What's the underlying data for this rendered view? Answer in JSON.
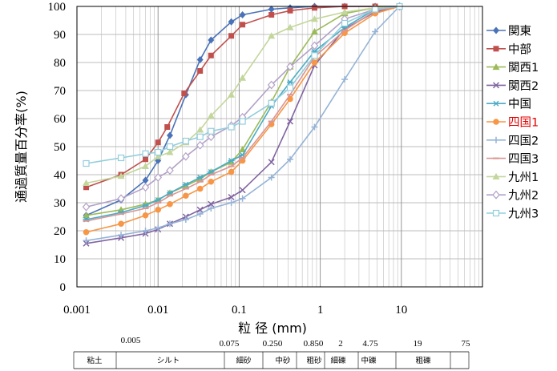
{
  "chart_data": {
    "type": "line",
    "title": "",
    "xlabel": "粒 径 (mm)",
    "ylabel": "通過質量百分率(%)",
    "xscale": "log",
    "xlim": [
      0.001,
      100
    ],
    "ylim": [
      0,
      100
    ],
    "grid": true,
    "legend": "right",
    "x_tick_labels": [
      "0.001",
      "0.01",
      "0.1",
      "1",
      "10"
    ],
    "y_tick_labels": [
      "0",
      "10",
      "20",
      "30",
      "40",
      "50",
      "60",
      "70",
      "80",
      "90",
      "100"
    ],
    "series": [
      {
        "name": "関東",
        "color": "#4a72b8",
        "marker": "diamond",
        "x": [
          0.0013,
          0.0035,
          0.007,
          0.01,
          0.014,
          0.022,
          0.033,
          0.045,
          0.08,
          0.11,
          0.25,
          0.425,
          0.85,
          2,
          4.75,
          9.5
        ],
        "y": [
          25.5,
          31,
          38,
          45,
          54,
          68.5,
          81,
          88,
          94.5,
          97,
          99,
          99.5,
          100,
          100,
          100,
          100
        ]
      },
      {
        "name": "中部",
        "color": "#c0504d",
        "marker": "square",
        "x": [
          0.0013,
          0.0035,
          0.007,
          0.01,
          0.013,
          0.021,
          0.033,
          0.045,
          0.08,
          0.11,
          0.25,
          0.425,
          0.85,
          2,
          4.75,
          9.5
        ],
        "y": [
          35.5,
          40,
          45.5,
          51.5,
          57,
          69,
          77,
          82.5,
          89.5,
          93.5,
          97,
          98.5,
          99.5,
          100,
          100,
          100
        ]
      },
      {
        "name": "関西1",
        "color": "#9bbb59",
        "marker": "triangle",
        "x": [
          0.0013,
          0.0035,
          0.007,
          0.01,
          0.014,
          0.022,
          0.033,
          0.045,
          0.08,
          0.11,
          0.25,
          0.425,
          0.85,
          2,
          4.75,
          9.5
        ],
        "y": [
          25.5,
          27.5,
          29.5,
          31,
          33.5,
          36,
          38.5,
          41,
          44.5,
          49,
          66,
          78.5,
          91,
          97.5,
          99.5,
          100
        ]
      },
      {
        "name": "関西2",
        "color": "#8064a2",
        "marker": "x",
        "x": [
          0.0013,
          0.0035,
          0.007,
          0.01,
          0.014,
          0.022,
          0.033,
          0.045,
          0.08,
          0.11,
          0.25,
          0.425,
          0.85,
          2,
          4.75,
          9.5
        ],
        "y": [
          15.5,
          17.5,
          19,
          20.5,
          22.5,
          25,
          27.5,
          29.5,
          32,
          34.5,
          44.5,
          59,
          79,
          92,
          98,
          100
        ]
      },
      {
        "name": "中国",
        "color": "#4bacc6",
        "marker": "star",
        "x": [
          0.0013,
          0.0035,
          0.007,
          0.01,
          0.014,
          0.022,
          0.033,
          0.045,
          0.08,
          0.11,
          0.25,
          0.425,
          0.85,
          2,
          4.75,
          9.5
        ],
        "y": [
          24,
          26.5,
          29,
          31,
          33.5,
          36.5,
          39,
          41,
          45,
          47,
          64.5,
          73,
          84,
          92.5,
          99,
          100
        ]
      },
      {
        "name": "四国1",
        "color": "#f79646",
        "marker": "circle",
        "x": [
          0.0013,
          0.0035,
          0.007,
          0.01,
          0.014,
          0.022,
          0.033,
          0.045,
          0.08,
          0.11,
          0.25,
          0.425,
          0.85,
          2,
          4.75,
          9.5
        ],
        "y": [
          19.5,
          22.5,
          25.5,
          27.5,
          29.5,
          32.5,
          35,
          37.5,
          41,
          45,
          58,
          67,
          80,
          90.5,
          97.5,
          100
        ]
      },
      {
        "name": "四国2",
        "color": "#95b3d7",
        "marker": "plus",
        "x": [
          0.0013,
          0.0035,
          0.007,
          0.01,
          0.014,
          0.022,
          0.033,
          0.045,
          0.08,
          0.11,
          0.25,
          0.425,
          0.85,
          2,
          4.75,
          9.5
        ],
        "y": [
          16.5,
          18.5,
          20,
          21,
          22.5,
          24,
          26,
          28,
          30,
          31.5,
          39,
          45.5,
          57,
          74,
          91,
          100
        ]
      },
      {
        "name": "四国3",
        "color": "#d99694",
        "marker": "dash",
        "x": [
          0.0013,
          0.0035,
          0.007,
          0.01,
          0.014,
          0.022,
          0.033,
          0.045,
          0.08,
          0.11,
          0.25,
          0.425,
          0.85,
          2,
          4.75,
          9.5
        ],
        "y": [
          23.5,
          26,
          28,
          30,
          32.5,
          35,
          37.5,
          40,
          43,
          46,
          59,
          68.5,
          82,
          91.5,
          98.5,
          100
        ]
      },
      {
        "name": "九州1",
        "color": "#c3d69b",
        "marker": "triangle",
        "x": [
          0.0013,
          0.0035,
          0.007,
          0.01,
          0.014,
          0.022,
          0.033,
          0.045,
          0.08,
          0.11,
          0.25,
          0.425,
          0.85,
          2,
          4.75,
          9.5
        ],
        "y": [
          37,
          39.5,
          43,
          46.5,
          48,
          51.5,
          56,
          61,
          68.5,
          74.5,
          89.5,
          92.5,
          95.5,
          98,
          99.5,
          100
        ]
      },
      {
        "name": "九州2",
        "color": "#b2a1c7",
        "marker": "diamond-open",
        "x": [
          0.0013,
          0.0035,
          0.007,
          0.01,
          0.014,
          0.022,
          0.033,
          0.045,
          0.08,
          0.11,
          0.25,
          0.425,
          0.85,
          2,
          4.75,
          9.5
        ],
        "y": [
          28.5,
          31.5,
          35.5,
          39,
          41.5,
          46.5,
          50.5,
          53.5,
          57.5,
          60.5,
          72,
          78.5,
          86,
          95.5,
          99,
          100
        ]
      },
      {
        "name": "九州3",
        "color": "#93cddd",
        "marker": "square-open",
        "x": [
          0.0013,
          0.0035,
          0.007,
          0.01,
          0.014,
          0.022,
          0.033,
          0.045,
          0.08,
          0.11,
          0.25,
          0.425,
          0.85,
          2,
          4.75,
          9.5
        ],
        "y": [
          44,
          46,
          47.5,
          48,
          50,
          52,
          53.5,
          55.5,
          57,
          59,
          65.5,
          71,
          82.5,
          94,
          99,
          100
        ]
      }
    ],
    "highlight_series": "四国1",
    "highlight_color": "#e00000"
  },
  "grain_size_labels": [
    "0.005",
    "0.075",
    "0.250",
    "0.850",
    "2",
    "4.75",
    "19",
    "75"
  ],
  "soil_classes": [
    "粘土",
    "シルト",
    "細砂",
    "中砂",
    "粗砂",
    "細礫",
    "中礫",
    "粗礫"
  ]
}
